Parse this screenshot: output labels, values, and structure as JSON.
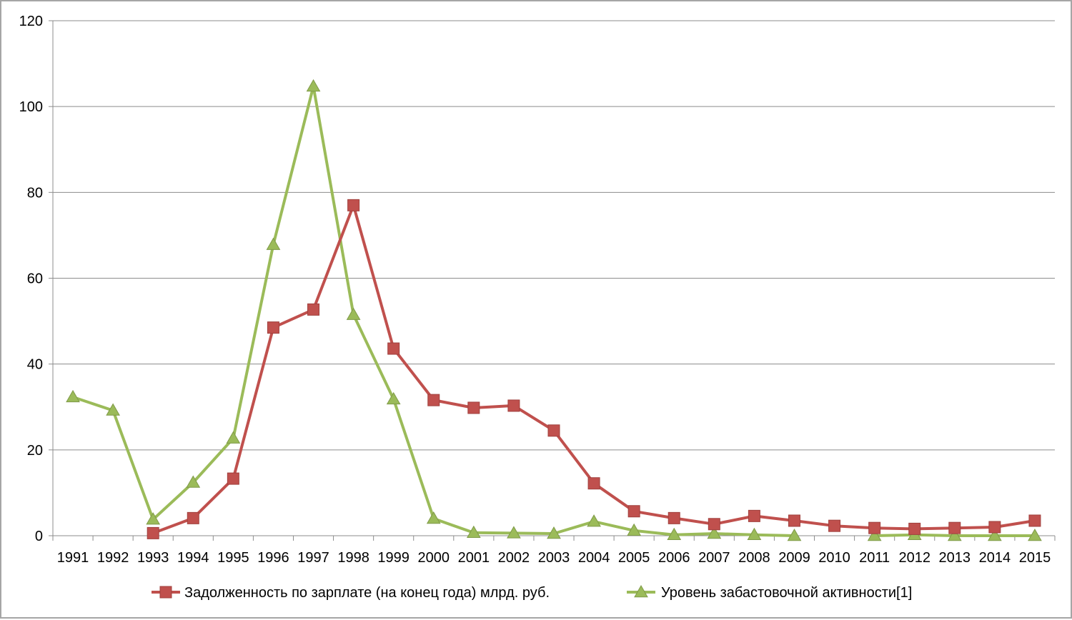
{
  "chart_data": {
    "type": "line",
    "title": "",
    "xlabel": "",
    "ylabel": "",
    "categories": [
      "1991",
      "1992",
      "1993",
      "1994",
      "1995",
      "1996",
      "1997",
      "1998",
      "1999",
      "2000",
      "2001",
      "2002",
      "2003",
      "2004",
      "2005",
      "2006",
      "2007",
      "2008",
      "2009",
      "2010",
      "2011",
      "2012",
      "2013",
      "2014",
      "2015"
    ],
    "ylim": [
      0,
      120
    ],
    "yticks": [
      "0",
      "20",
      "40",
      "60",
      "80",
      "100",
      "120"
    ],
    "grid": "horizontal",
    "legend_position": "bottom",
    "series": [
      {
        "name": "Задолженность по зарплате (на конец года) млрд. руб.",
        "color": "#c0504d",
        "marker": "square",
        "values": [
          null,
          null,
          0.6,
          4.1,
          13.3,
          48.5,
          52.7,
          77.0,
          43.6,
          31.6,
          29.8,
          30.3,
          24.5,
          12.2,
          5.7,
          4.1,
          2.7,
          4.6,
          3.5,
          2.3,
          1.8,
          1.6,
          1.8,
          2.0,
          3.5
        ]
      },
      {
        "name": "Уровень забастовочной активности[1]",
        "color": "#9bbb59",
        "marker": "triangle",
        "values": [
          32.3,
          29.2,
          3.8,
          12.4,
          22.7,
          67.8,
          104.7,
          51.5,
          31.8,
          4.0,
          0.7,
          0.6,
          0.5,
          3.3,
          1.2,
          0.2,
          0.5,
          0.2,
          0.0,
          null,
          0.0,
          0.2,
          0.0,
          0.0,
          0.0
        ]
      }
    ]
  }
}
